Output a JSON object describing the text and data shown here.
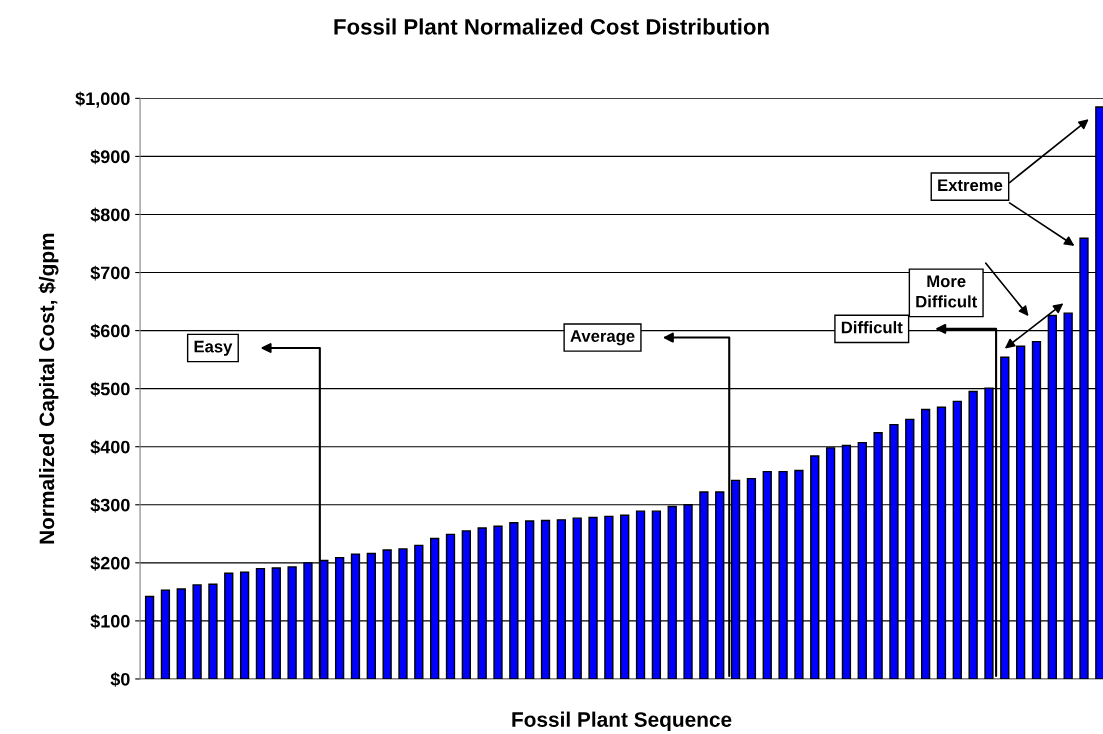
{
  "chart_data": {
    "type": "bar",
    "title": "Fossil Plant Normalized Cost Distribution",
    "xlabel": "Fossil Plant Sequence",
    "ylabel": "Normalized Capital Cost, $/gpm",
    "categories": [
      null,
      null,
      null,
      null,
      null,
      null,
      null,
      null,
      null,
      null,
      null,
      null,
      null,
      null,
      null,
      null,
      null,
      null,
      null,
      null,
      null,
      null,
      null,
      null,
      null,
      null,
      null,
      null,
      null,
      null,
      null,
      null,
      null,
      null,
      null,
      null,
      null,
      null,
      null,
      null,
      null,
      null,
      null,
      null,
      null,
      null,
      null,
      null,
      null,
      null,
      null,
      null,
      null,
      null,
      null,
      null,
      null,
      null,
      null,
      null,
      null
    ],
    "values": [
      142,
      153,
      155,
      162,
      163,
      182,
      184,
      190,
      191,
      193,
      200,
      204,
      209,
      215,
      216,
      222,
      224,
      230,
      242,
      249,
      255,
      260,
      263,
      269,
      272,
      273,
      274,
      277,
      278,
      280,
      282,
      289,
      289,
      297,
      300,
      322,
      322,
      342,
      345,
      357,
      357,
      359,
      384,
      398,
      402,
      407,
      424,
      438,
      447,
      464,
      468,
      478,
      495,
      501,
      554,
      573,
      581,
      626,
      630,
      759,
      985
    ],
    "color": "#0000ff",
    "ylim": [
      0,
      1000
    ],
    "yticks": [
      {
        "value": 0,
        "label": "$0"
      },
      {
        "value": 100,
        "label": "$100"
      },
      {
        "value": 200,
        "label": "$200"
      },
      {
        "value": 300,
        "label": "$300"
      },
      {
        "value": 400,
        "label": "$400"
      },
      {
        "value": 500,
        "label": "$500"
      },
      {
        "value": 600,
        "label": "$600"
      },
      {
        "value": 700,
        "label": "$700"
      },
      {
        "value": 800,
        "label": "$800"
      },
      {
        "value": 900,
        "label": "$900"
      },
      {
        "value": 1000,
        "label": "$1,000"
      }
    ],
    "grid": "y",
    "annotations": [
      "Easy",
      "Average",
      "Difficult",
      "More\nDifficult",
      "Extreme"
    ]
  }
}
